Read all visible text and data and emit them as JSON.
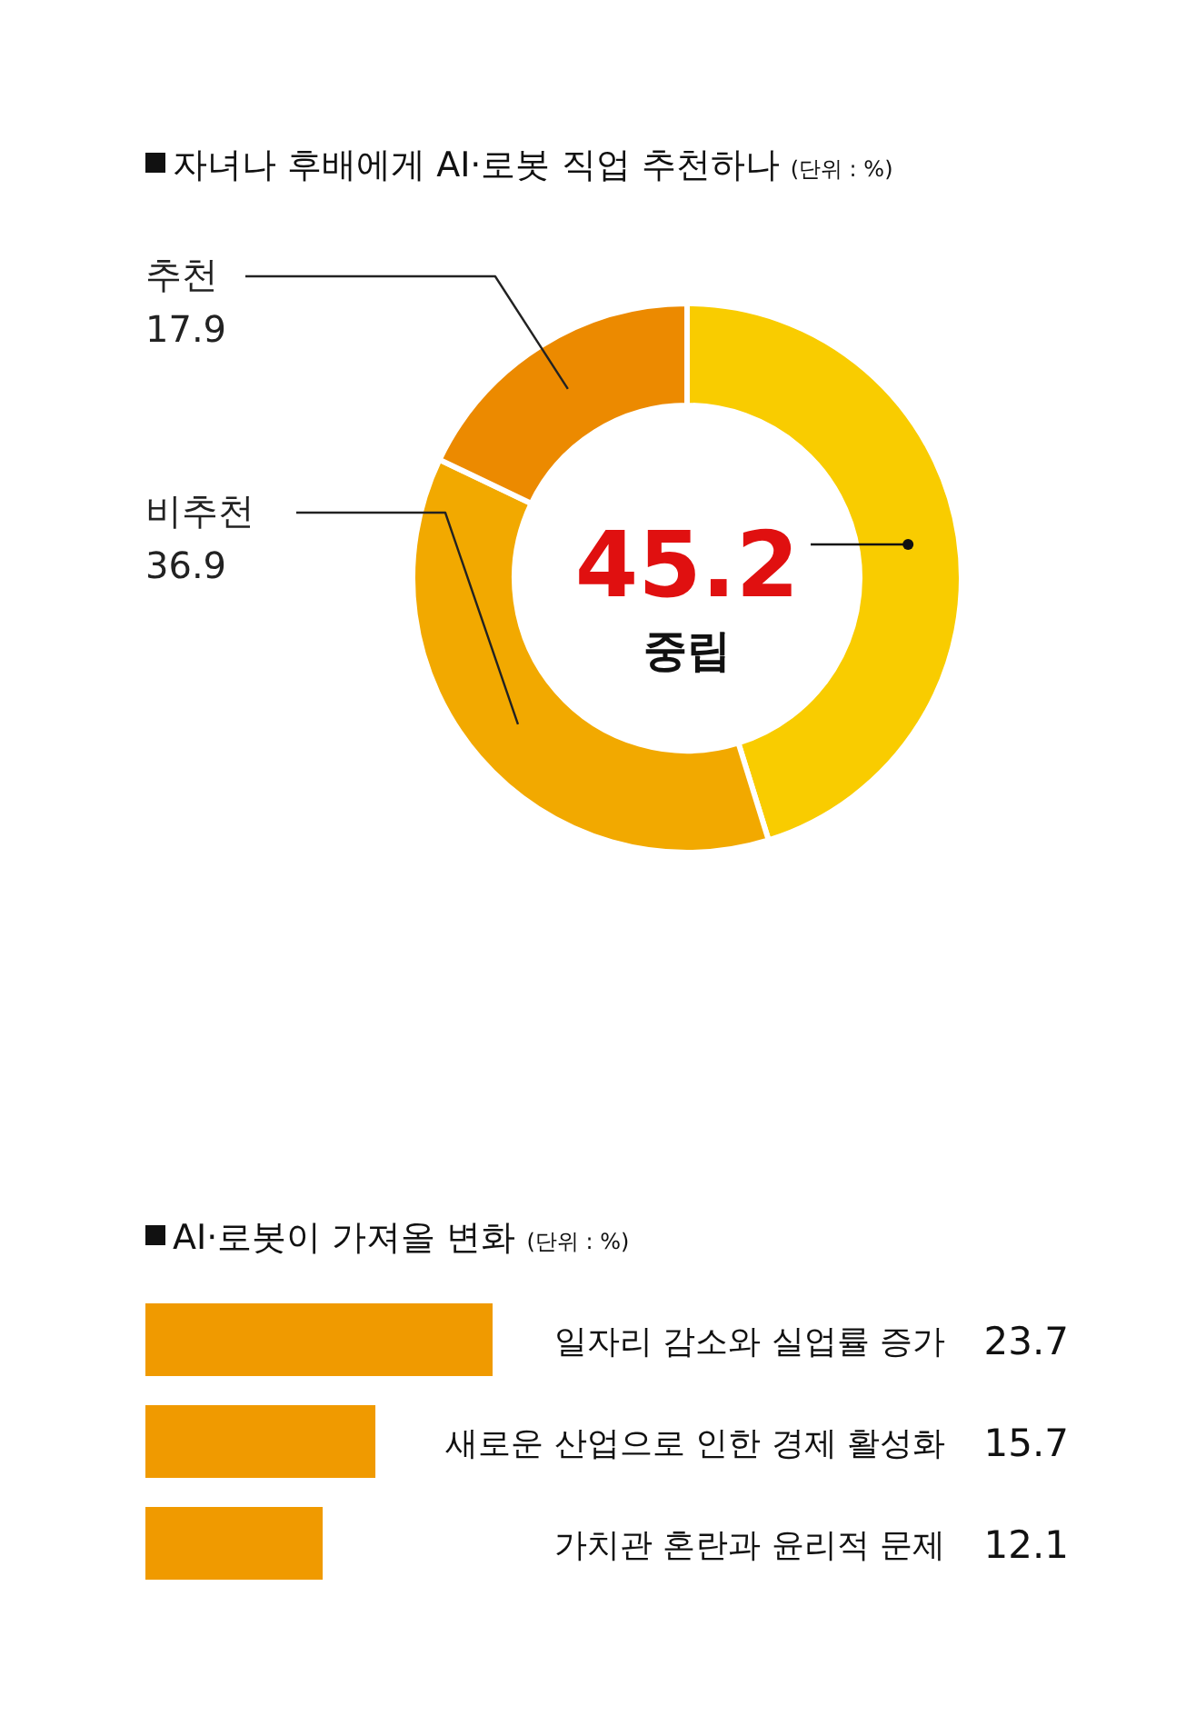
{
  "chart_data": [
    {
      "type": "donut",
      "title": "자녀나 후배에게 AI·로봇 직업 추천하나",
      "subtitle": "(단위 : %)",
      "categories": [
        "중립",
        "비추천",
        "추천"
      ],
      "values": [
        45.2,
        36.9,
        17.9
      ],
      "colors": [
        "#f9cc00",
        "#f2a900",
        "#ec8a00"
      ],
      "data_labels": true
    },
    {
      "type": "bar",
      "orientation": "horizontal",
      "title": "AI·로봇이 가져올 변화",
      "subtitle": "(단위 : %)",
      "categories": [
        "일자리 감소와 실업률 증가",
        "새로운 산업으로 인한 경제 활성화",
        "가치관 혼란과 윤리적 문제"
      ],
      "values": [
        23.7,
        15.7,
        12.1
      ],
      "color": "#f09a00",
      "data_labels": true
    }
  ]
}
